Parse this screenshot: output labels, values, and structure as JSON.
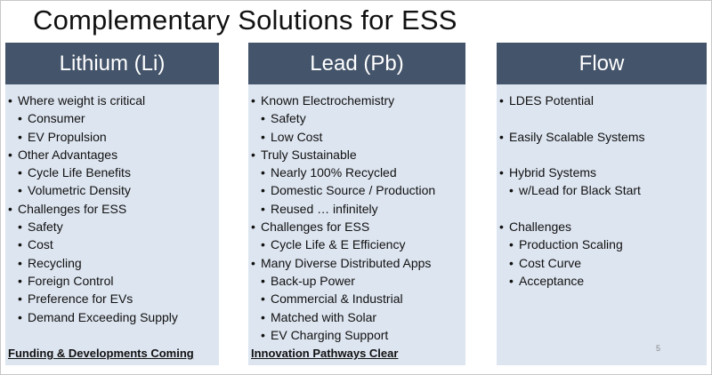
{
  "title": "Complementary Solutions for ESS",
  "columns": [
    {
      "header": "Lithium (Li)",
      "items": [
        {
          "text": "Where weight is critical",
          "level": 1
        },
        {
          "text": "Consumer",
          "level": 2
        },
        {
          "text": "EV Propulsion",
          "level": 2
        },
        {
          "text": "Other Advantages",
          "level": 1
        },
        {
          "text": "Cycle Life Benefits",
          "level": 2
        },
        {
          "text": "Volumetric Density",
          "level": 2
        },
        {
          "text": "Challenges for ESS",
          "level": 1
        },
        {
          "text": "Safety",
          "level": 2
        },
        {
          "text": "Cost",
          "level": 2
        },
        {
          "text": "Recycling",
          "level": 2
        },
        {
          "text": "Foreign Control",
          "level": 2
        },
        {
          "text": "Preference for EVs",
          "level": 2
        },
        {
          "text": "Demand Exceeding Supply",
          "level": 2
        }
      ],
      "footer": "Funding & Developments Coming"
    },
    {
      "header": "Lead (Pb)",
      "items": [
        {
          "text": "Known Electrochemistry",
          "level": 1
        },
        {
          "text": "Safety",
          "level": 2
        },
        {
          "text": "Low Cost",
          "level": 2
        },
        {
          "text": "Truly Sustainable",
          "level": 1
        },
        {
          "text": "Nearly 100% Recycled",
          "level": 2
        },
        {
          "text": "Domestic Source / Production",
          "level": 2
        },
        {
          "text": "Reused … infinitely",
          "level": 2
        },
        {
          "text": "Challenges for ESS",
          "level": 1
        },
        {
          "text": "Cycle Life & E Efficiency",
          "level": 2
        },
        {
          "text": "Many Diverse Distributed Apps",
          "level": 1
        },
        {
          "text": "Back-up Power",
          "level": 2
        },
        {
          "text": "Commercial & Industrial",
          "level": 2
        },
        {
          "text": "Matched with Solar",
          "level": 2
        },
        {
          "text": "EV Charging Support",
          "level": 2
        }
      ],
      "footer": "Innovation Pathways Clear"
    },
    {
      "header": "Flow",
      "items": [
        {
          "text": "LDES Potential",
          "level": 1
        },
        {
          "text": "",
          "level": 0
        },
        {
          "text": "Easily Scalable Systems",
          "level": 1
        },
        {
          "text": "",
          "level": 0
        },
        {
          "text": "Hybrid Systems",
          "level": 1
        },
        {
          "text": "w/Lead for Black Start",
          "level": 2
        },
        {
          "text": "",
          "level": 0
        },
        {
          "text": "Challenges",
          "level": 1
        },
        {
          "text": "Production Scaling",
          "level": 2
        },
        {
          "text": "Cost Curve",
          "level": 2
        },
        {
          "text": "Acceptance",
          "level": 2
        }
      ],
      "footer": ""
    }
  ],
  "page_number": "5",
  "bullet_glyph": "•",
  "colors": {
    "header_bg": "#44546a",
    "column_bg": "#dde5f0",
    "text": "#111111"
  }
}
